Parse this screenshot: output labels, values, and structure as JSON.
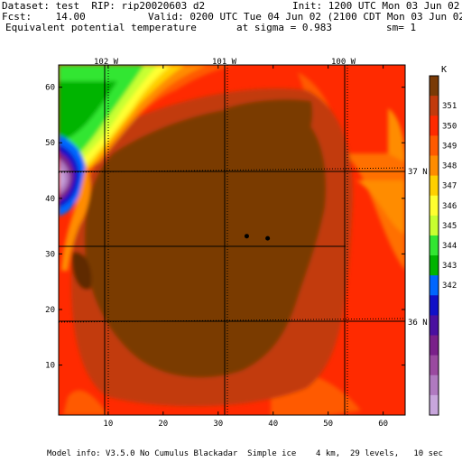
{
  "header": {
    "dataset": "Dataset: test  RIP: rip20020603 d2",
    "init": "Init: 1200 UTC Mon 03 Jun 02",
    "fcst": "Fcst:    14.00",
    "valid": "Valid: 0200 UTC Tue 04 Jun 02 (2100 CDT Mon 03 Jun 02)",
    "field": "Equivalent potential temperature",
    "sigma": "at sigma = 0.983",
    "sm": "sm= 1"
  },
  "map": {
    "lon_labels": [
      "102 W",
      "101 W",
      "100 W"
    ],
    "lat_labels": [
      "37 N",
      "36 N"
    ],
    "x_ticks": [
      "10",
      "20",
      "30",
      "40",
      "50",
      "60"
    ],
    "y_ticks": [
      "10",
      "20",
      "30",
      "40",
      "50",
      "60"
    ],
    "x_range": [
      1,
      64
    ],
    "y_range": [
      1,
      64
    ],
    "stations": [
      {
        "x": 35.2,
        "y": 33.2
      },
      {
        "x": 39.0,
        "y": 32.8
      }
    ]
  },
  "colorbar": {
    "unit": "K",
    "levels": [
      "351",
      "350",
      "349",
      "348",
      "347",
      "346",
      "345",
      "344",
      "343",
      "342"
    ],
    "colors": [
      "#7a3a06",
      "#c23a0c",
      "#ff2a00",
      "#ff5a00",
      "#ff8c00",
      "#ffd000",
      "#ffff30",
      "#c8ff30",
      "#32e632",
      "#00b400",
      "#0066ff",
      "#1010c8",
      "#4a10a0",
      "#7a208a",
      "#9a4aa0",
      "#b07ac0",
      "#c8a6dc"
    ]
  },
  "footer": "Model info: V3.5.0 No Cumulus Blackadar  Simple ice    4 km,  29 levels,   10 sec"
}
